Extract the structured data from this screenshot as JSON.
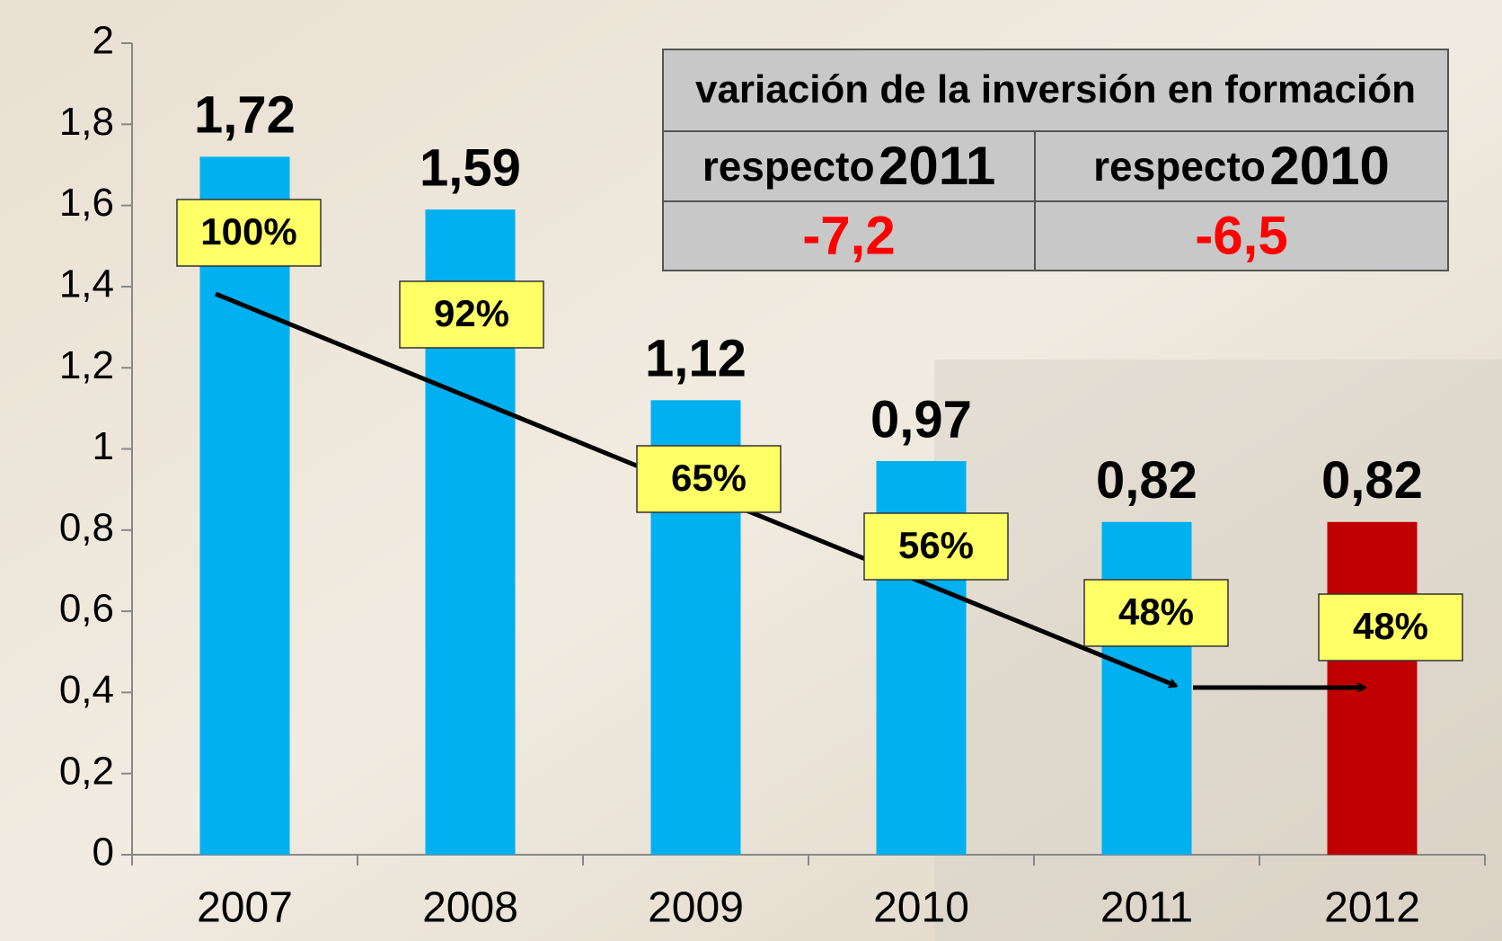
{
  "chart_data": {
    "type": "bar",
    "categories": [
      "2007",
      "2008",
      "2009",
      "2010",
      "2011",
      "2012"
    ],
    "values": [
      1.72,
      1.59,
      1.12,
      0.97,
      0.82,
      0.82
    ],
    "value_labels": [
      "1,72",
      "1,59",
      "1,12",
      "0,97",
      "0,82",
      "0,82"
    ],
    "colors": [
      "#00b0f0",
      "#00b0f0",
      "#00b0f0",
      "#00b0f0",
      "#00b0f0",
      "#c00000"
    ],
    "percent_labels": [
      "100%",
      "92%",
      "65%",
      "56%",
      "48%",
      "48%"
    ],
    "ylim": [
      0,
      2
    ],
    "yticks": [
      0,
      {
        "value": 0.2,
        "label": "0,2"
      },
      {
        "value": 0.4,
        "label": "0,4"
      },
      {
        "value": 0.6,
        "label": "0,6"
      },
      {
        "value": 0.8,
        "label": "0,8"
      },
      1,
      {
        "value": 1.2,
        "label": "1,2"
      },
      {
        "value": 1.4,
        "label": "1,4"
      },
      {
        "value": 1.6,
        "label": "1,6"
      },
      {
        "value": 1.8,
        "label": "1,8"
      },
      2
    ],
    "table": {
      "title": "variación de la inversión en formación",
      "columns": [
        {
          "prefix": "respecto",
          "year": "2011",
          "value": "-7,2"
        },
        {
          "prefix": "respecto",
          "year": "2010",
          "value": "-6,5"
        }
      ]
    }
  }
}
